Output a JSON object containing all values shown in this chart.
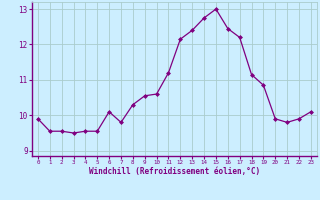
{
  "x": [
    0,
    1,
    2,
    3,
    4,
    5,
    6,
    7,
    8,
    9,
    10,
    11,
    12,
    13,
    14,
    15,
    16,
    17,
    18,
    19,
    20,
    21,
    22,
    23
  ],
  "y": [
    9.9,
    9.55,
    9.55,
    9.5,
    9.55,
    9.55,
    10.1,
    9.8,
    10.3,
    10.55,
    10.6,
    11.2,
    12.15,
    12.4,
    12.75,
    13.0,
    12.45,
    12.2,
    11.15,
    10.85,
    9.9,
    9.8,
    9.9,
    10.1
  ],
  "ylim": [
    8.85,
    13.2
  ],
  "yticks": [
    9,
    10,
    11,
    12,
    13
  ],
  "xticks": [
    0,
    1,
    2,
    3,
    4,
    5,
    6,
    7,
    8,
    9,
    10,
    11,
    12,
    13,
    14,
    15,
    16,
    17,
    18,
    19,
    20,
    21,
    22,
    23
  ],
  "xlabel": "Windchill (Refroidissement éolien,°C)",
  "line_color": "#800080",
  "marker": "D",
  "marker_size": 2.0,
  "bg_color": "#cceeff",
  "grid_color": "#aacccc",
  "tick_color": "#800080",
  "spine_color": "#800080",
  "xlabel_color": "#800080",
  "bottom_bar_color": "#800080"
}
